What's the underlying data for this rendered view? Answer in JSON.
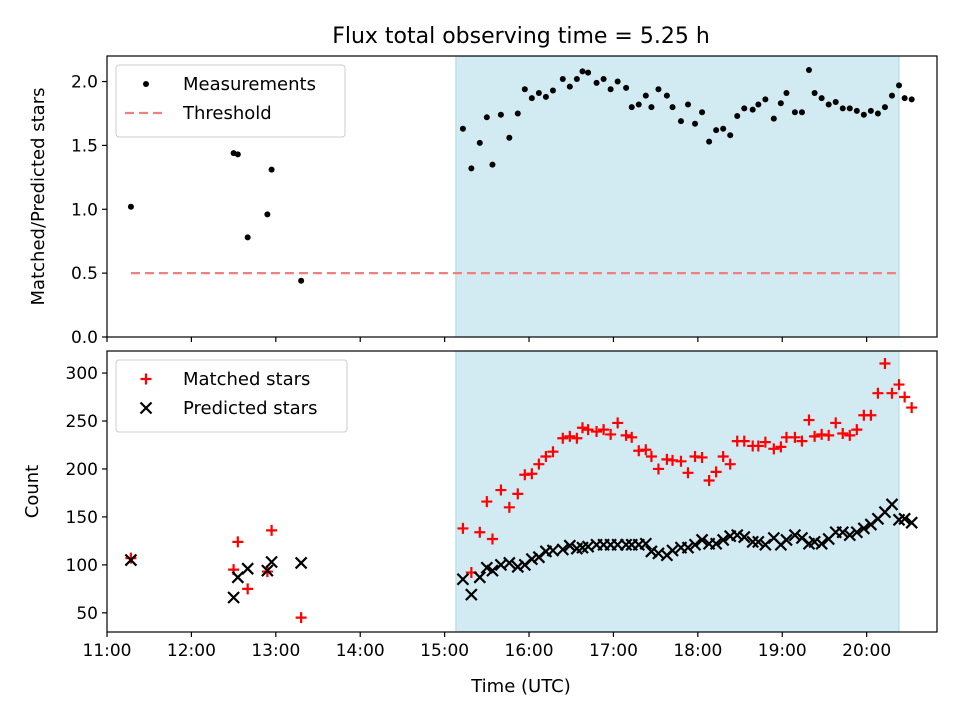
{
  "title": "Flux total observing time = 5.25 h",
  "xlabel": "Time (UTC)",
  "x_ticks": [
    "11:00",
    "12:00",
    "13:00",
    "14:00",
    "15:00",
    "16:00",
    "17:00",
    "18:00",
    "19:00",
    "20:00"
  ],
  "colors": {
    "shade": "#add8e6",
    "threshold": "#f08080",
    "measurement": "#000000",
    "matched": "#ff0000",
    "predicted": "#000000"
  },
  "chart_data": [
    {
      "type": "scatter",
      "ylabel": "Matched/Predicted stars",
      "xlim": [
        "11:00",
        "20:50"
      ],
      "ylim": [
        0,
        2.2
      ],
      "y_ticks": [
        "0.0",
        "0.5",
        "1.0",
        "1.5",
        "2.0"
      ],
      "shaded_interval": [
        "15:08",
        "20:23"
      ],
      "legend_position": "upper-left",
      "threshold": {
        "name": "Threshold",
        "value": 0.5,
        "x_range": [
          "11:17",
          "20:23"
        ]
      },
      "series": [
        {
          "name": "Measurements",
          "points": [
            [
              "11:17",
              1.02
            ],
            [
              "12:30",
              1.44
            ],
            [
              "12:33",
              1.43
            ],
            [
              "12:40",
              0.78
            ],
            [
              "12:54",
              0.96
            ],
            [
              "12:57",
              1.31
            ],
            [
              "13:18",
              0.44
            ],
            [
              "15:13",
              1.63
            ],
            [
              "15:19",
              1.32
            ],
            [
              "15:25",
              1.52
            ],
            [
              "15:30",
              1.72
            ],
            [
              "15:34",
              1.35
            ],
            [
              "15:40",
              1.74
            ],
            [
              "15:46",
              1.56
            ],
            [
              "15:52",
              1.75
            ],
            [
              "15:57",
              1.94
            ],
            [
              "16:02",
              1.87
            ],
            [
              "16:07",
              1.91
            ],
            [
              "16:12",
              1.88
            ],
            [
              "16:17",
              1.93
            ],
            [
              "16:24",
              2.02
            ],
            [
              "16:29",
              1.96
            ],
            [
              "16:34",
              2.02
            ],
            [
              "16:38",
              2.08
            ],
            [
              "16:42",
              2.07
            ],
            [
              "16:48",
              1.99
            ],
            [
              "16:53",
              2.02
            ],
            [
              "16:58",
              1.94
            ],
            [
              "17:03",
              2.0
            ],
            [
              "17:09",
              1.95
            ],
            [
              "17:13",
              1.8
            ],
            [
              "17:18",
              1.82
            ],
            [
              "17:23",
              1.89
            ],
            [
              "17:27",
              1.8
            ],
            [
              "17:32",
              1.94
            ],
            [
              "17:38",
              1.89
            ],
            [
              "17:42",
              1.8
            ],
            [
              "17:48",
              1.69
            ],
            [
              "17:53",
              1.82
            ],
            [
              "17:58",
              1.67
            ],
            [
              "18:03",
              1.76
            ],
            [
              "18:08",
              1.53
            ],
            [
              "18:13",
              1.62
            ],
            [
              "18:18",
              1.63
            ],
            [
              "18:23",
              1.58
            ],
            [
              "18:28",
              1.73
            ],
            [
              "18:33",
              1.79
            ],
            [
              "18:39",
              1.78
            ],
            [
              "18:43",
              1.82
            ],
            [
              "18:48",
              1.86
            ],
            [
              "18:54",
              1.71
            ],
            [
              "18:59",
              1.83
            ],
            [
              "19:03",
              1.91
            ],
            [
              "19:09",
              1.76
            ],
            [
              "19:14",
              1.76
            ],
            [
              "19:19",
              2.09
            ],
            [
              "19:23",
              1.91
            ],
            [
              "19:28",
              1.87
            ],
            [
              "19:33",
              1.82
            ],
            [
              "19:38",
              1.84
            ],
            [
              "19:43",
              1.79
            ],
            [
              "19:48",
              1.79
            ],
            [
              "19:53",
              1.77
            ],
            [
              "19:58",
              1.74
            ],
            [
              "20:03",
              1.77
            ],
            [
              "20:08",
              1.75
            ],
            [
              "20:13",
              1.8
            ],
            [
              "20:18",
              1.89
            ],
            [
              "20:23",
              1.97
            ],
            [
              "20:27",
              1.87
            ],
            [
              "20:32",
              1.86
            ]
          ]
        }
      ]
    },
    {
      "type": "scatter",
      "ylabel": "Count",
      "xlim": [
        "11:00",
        "20:50"
      ],
      "ylim": [
        30,
        323
      ],
      "y_ticks": [
        "50",
        "100",
        "150",
        "200",
        "250",
        "300"
      ],
      "shaded_interval": [
        "15:08",
        "20:23"
      ],
      "legend_position": "upper-left",
      "series": [
        {
          "name": "Matched stars",
          "marker": "plus",
          "points": [
            [
              "11:17",
              107
            ],
            [
              "12:30",
              95
            ],
            [
              "12:33",
              124
            ],
            [
              "12:40",
              75
            ],
            [
              "12:54",
              93
            ],
            [
              "12:57",
              136
            ],
            [
              "13:18",
              45
            ],
            [
              "15:13",
              138
            ],
            [
              "15:19",
              92
            ],
            [
              "15:25",
              134
            ],
            [
              "15:30",
              166
            ],
            [
              "15:34",
              127
            ],
            [
              "15:40",
              178
            ],
            [
              "15:46",
              160
            ],
            [
              "15:52",
              174
            ],
            [
              "15:57",
              194
            ],
            [
              "16:02",
              195
            ],
            [
              "16:07",
              205
            ],
            [
              "16:12",
              213
            ],
            [
              "16:17",
              218
            ],
            [
              "16:24",
              232
            ],
            [
              "16:29",
              234
            ],
            [
              "16:34",
              232
            ],
            [
              "16:38",
              243
            ],
            [
              "16:42",
              241
            ],
            [
              "16:48",
              239
            ],
            [
              "16:53",
              241
            ],
            [
              "16:58",
              236
            ],
            [
              "17:03",
              248
            ],
            [
              "17:09",
              235
            ],
            [
              "17:13",
              233
            ],
            [
              "17:18",
              219
            ],
            [
              "17:23",
              220
            ],
            [
              "17:27",
              213
            ],
            [
              "17:32",
              200
            ],
            [
              "17:38",
              210
            ],
            [
              "17:42",
              209
            ],
            [
              "17:48",
              208
            ],
            [
              "17:53",
              196
            ],
            [
              "17:58",
              213
            ],
            [
              "18:03",
              212
            ],
            [
              "18:08",
              188
            ],
            [
              "18:13",
              197
            ],
            [
              "18:18",
              213
            ],
            [
              "18:23",
              205
            ],
            [
              "18:28",
              229
            ],
            [
              "18:33",
              229
            ],
            [
              "18:39",
              224
            ],
            [
              "18:43",
              224
            ],
            [
              "18:48",
              228
            ],
            [
              "18:54",
              221
            ],
            [
              "18:59",
              223
            ],
            [
              "19:03",
              233
            ],
            [
              "19:09",
              233
            ],
            [
              "19:14",
              229
            ],
            [
              "19:19",
              251
            ],
            [
              "19:23",
              234
            ],
            [
              "19:28",
              236
            ],
            [
              "19:33",
              235
            ],
            [
              "19:38",
              248
            ],
            [
              "19:43",
              237
            ],
            [
              "19:48",
              235
            ],
            [
              "19:53",
              241
            ],
            [
              "19:58",
              256
            ],
            [
              "20:03",
              256
            ],
            [
              "20:08",
              279
            ],
            [
              "20:13",
              310
            ],
            [
              "20:18",
              279
            ],
            [
              "20:23",
              288
            ],
            [
              "20:27",
              275
            ],
            [
              "20:32",
              264
            ]
          ]
        },
        {
          "name": "Predicted stars",
          "marker": "x",
          "points": [
            [
              "11:17",
              105
            ],
            [
              "12:30",
              66
            ],
            [
              "12:33",
              87
            ],
            [
              "12:40",
              96
            ],
            [
              "12:54",
              94
            ],
            [
              "12:57",
              103
            ],
            [
              "13:18",
              102
            ],
            [
              "15:13",
              85
            ],
            [
              "15:19",
              69
            ],
            [
              "15:25",
              87
            ],
            [
              "15:30",
              97
            ],
            [
              "15:34",
              94
            ],
            [
              "15:40",
              100
            ],
            [
              "15:46",
              102
            ],
            [
              "15:52",
              98
            ],
            [
              "15:57",
              100
            ],
            [
              "16:02",
              106
            ],
            [
              "16:07",
              108
            ],
            [
              "16:12",
              114
            ],
            [
              "16:17",
              115
            ],
            [
              "16:24",
              116
            ],
            [
              "16:29",
              120
            ],
            [
              "16:34",
              117
            ],
            [
              "16:38",
              118
            ],
            [
              "16:42",
              119
            ],
            [
              "16:48",
              121
            ],
            [
              "16:53",
              121
            ],
            [
              "16:58",
              121
            ],
            [
              "17:03",
              121
            ],
            [
              "17:09",
              121
            ],
            [
              "17:13",
              121
            ],
            [
              "17:18",
              121
            ],
            [
              "17:23",
              122
            ],
            [
              "17:27",
              114
            ],
            [
              "17:32",
              112
            ],
            [
              "17:38",
              110
            ],
            [
              "17:42",
              115
            ],
            [
              "17:48",
              118
            ],
            [
              "17:53",
              118
            ],
            [
              "17:58",
              121
            ],
            [
              "18:03",
              126
            ],
            [
              "18:08",
              122
            ],
            [
              "18:13",
              122
            ],
            [
              "18:18",
              126
            ],
            [
              "18:23",
              130
            ],
            [
              "18:28",
              131
            ],
            [
              "18:33",
              129
            ],
            [
              "18:39",
              124
            ],
            [
              "18:43",
              124
            ],
            [
              "18:48",
              121
            ],
            [
              "18:54",
              128
            ],
            [
              "18:59",
              121
            ],
            [
              "19:03",
              126
            ],
            [
              "19:09",
              131
            ],
            [
              "19:14",
              128
            ],
            [
              "19:19",
              122
            ],
            [
              "19:23",
              124
            ],
            [
              "19:28",
              122
            ],
            [
              "19:33",
              127
            ],
            [
              "19:38",
              134
            ],
            [
              "19:43",
              134
            ],
            [
              "19:48",
              131
            ],
            [
              "19:53",
              134
            ],
            [
              "19:58",
              138
            ],
            [
              "20:03",
              142
            ],
            [
              "20:08",
              148
            ],
            [
              "20:13",
              155
            ],
            [
              "20:18",
              163
            ],
            [
              "20:23",
              147
            ],
            [
              "20:27",
              148
            ],
            [
              "20:32",
              144
            ]
          ]
        }
      ]
    }
  ]
}
